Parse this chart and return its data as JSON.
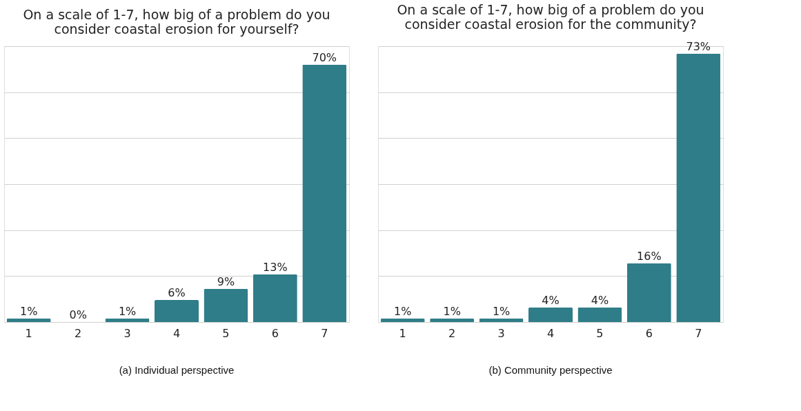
{
  "chart_data": [
    {
      "type": "bar",
      "title": "On a scale of 1-7, how big of a problem do you\nconsider coastal erosion for yourself?",
      "categories": [
        "1",
        "2",
        "3",
        "4",
        "5",
        "6",
        "7"
      ],
      "values": [
        1,
        0,
        1,
        6,
        9,
        13,
        70
      ],
      "value_labels": [
        "1%",
        "0%",
        "1%",
        "6%",
        "9%",
        "13%",
        "70%"
      ],
      "color": "#2f7d88",
      "ylim": [
        0,
        75
      ],
      "yticks": [
        0,
        {
          "value": 12.5,
          "label": null
        },
        25,
        {
          "value": 37.5,
          "label": null
        },
        50,
        {
          "value": 62.5,
          "label": null
        },
        75
      ],
      "grid": "y",
      "tick_labels": "x",
      "annotations": [
        "(a) Individual perspective"
      ]
    },
    {
      "type": "bar",
      "title": "On a scale of 1-7, how big of a problem do you\nconsider coastal erosion for the community?",
      "categories": [
        "1",
        "2",
        "3",
        "4",
        "5",
        "6",
        "7"
      ],
      "values": [
        1,
        1,
        1,
        4,
        4,
        16,
        73
      ],
      "value_labels": [
        "1%",
        "1%",
        "1%",
        "4%",
        "4%",
        "16%",
        "73%"
      ],
      "color": "#2f7d88",
      "ylim": [
        0,
        75
      ],
      "yticks": [
        0,
        {
          "value": 12.5,
          "label": null
        },
        25,
        {
          "value": 37.5,
          "label": null
        },
        50,
        {
          "value": 62.5,
          "label": null
        },
        75
      ],
      "grid": "y",
      "tick_labels": "x",
      "annotations": [
        "(b) Community perspective"
      ]
    }
  ]
}
